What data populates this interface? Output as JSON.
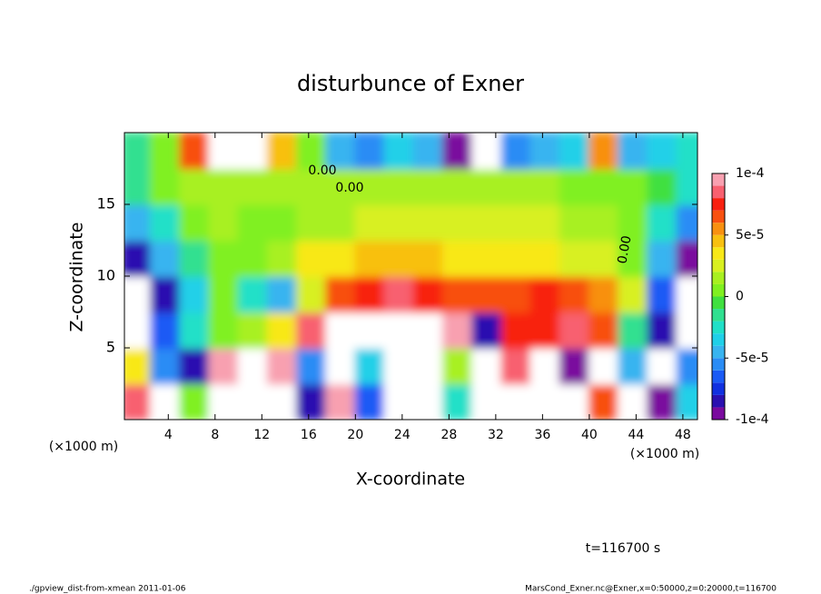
{
  "chart_data": {
    "type": "heatmap",
    "title": "disturbunce of Exner",
    "xlabel": "X-coordinate",
    "ylabel": "Z-coordinate",
    "x_unit_label": "(×1000 m)",
    "x_unit_label_right": "(×1000 m)",
    "time_label": "t=116700 s",
    "footer_left": "./gpview_dist-from-xmean  2011-01-06",
    "footer_right": "MarsCond_Exner.nc@Exner,x=0:50000,z=0:20000,t=116700",
    "annotations": [
      "0.00",
      "0.00",
      "0.00"
    ],
    "xlim": [
      0.25,
      49.25
    ],
    "ylim": [
      0,
      20
    ],
    "xticks": [
      4,
      8,
      12,
      16,
      20,
      24,
      28,
      32,
      36,
      40,
      44,
      48
    ],
    "yticks": [
      5,
      10,
      15
    ],
    "clim": [
      -0.0001,
      0.0001
    ],
    "cticks": [
      {
        "value": 0.0001,
        "label": "1e-4"
      },
      {
        "value": 5e-05,
        "label": "5e-5"
      },
      {
        "value": 0,
        "label": "0"
      },
      {
        "value": -5e-05,
        "label": "-5e-5"
      },
      {
        "value": -0.0001,
        "label": "-1e-4"
      }
    ],
    "colorscale": [
      "#7a0a9e",
      "#2a10b0",
      "#1030e0",
      "#1a5af5",
      "#2a8cf5",
      "#38b4f0",
      "#20d0e8",
      "#20e0c8",
      "#30e090",
      "#40e040",
      "#80f020",
      "#a8f020",
      "#d8f020",
      "#f8e818",
      "#f8c010",
      "#f89010",
      "#f85010",
      "#f82010",
      "#f86070",
      "#f8a0b0"
    ],
    "out_of_range_color": "#ffffff",
    "x": [
      1.25,
      3.75,
      6.25,
      8.75,
      11.25,
      13.75,
      16.25,
      18.75,
      21.25,
      23.75,
      26.25,
      28.75,
      31.25,
      33.75,
      36.25,
      38.75,
      41.25,
      43.75,
      46.25,
      48.75
    ],
    "z": [
      1.25,
      3.75,
      6.25,
      8.75,
      11.25,
      13.75,
      16.25,
      18.75
    ],
    "values": [
      [
        8e-05,
        0.00012,
        0,
        0.00012,
        0.00012,
        0.00012,
        -8e-05,
        9e-05,
        -7e-05,
        0.00012,
        0.00012,
        -3e-05,
        0.00012,
        -0.00012,
        -0.00012,
        -0.00012,
        6e-05,
        0.00012,
        -9e-05,
        -4e-05
      ],
      [
        3e-05,
        -6e-05,
        -8e-05,
        9e-05,
        0.00012,
        0.0001,
        -6e-05,
        0.00012,
        -4e-05,
        0.00012,
        0.00012,
        1e-05,
        0.00012,
        8e-05,
        -0.00012,
        -9e-05,
        -0.00012,
        -5e-05,
        -0.00012,
        -6e-05
      ],
      [
        -0.00012,
        -7e-05,
        -3e-05,
        0,
        1e-05,
        3e-05,
        8e-05,
        0.00012,
        0.00012,
        0.00012,
        0.00012,
        9e-05,
        -8e-05,
        7e-05,
        7e-05,
        8e-05,
        6e-05,
        -2e-05,
        -8e-05,
        -0.00012
      ],
      [
        -0.00012,
        -8e-05,
        -4e-05,
        0,
        -3e-05,
        -5e-05,
        2e-05,
        6e-05,
        7e-05,
        8e-05,
        7e-05,
        6e-05,
        6e-05,
        6e-05,
        7e-05,
        6e-05,
        5e-05,
        2e-05,
        -7e-05,
        -0.00012
      ],
      [
        -8e-05,
        -5e-05,
        -2e-05,
        0,
        0,
        1e-05,
        3e-05,
        3e-05,
        4e-05,
        4e-05,
        4e-05,
        3e-05,
        3e-05,
        3e-05,
        3e-05,
        2e-05,
        2e-05,
        0,
        -5e-05,
        -9e-05
      ],
      [
        -5e-05,
        -3e-05,
        0,
        1e-05,
        0,
        0,
        1e-05,
        1e-05,
        2e-05,
        2e-05,
        2e-05,
        2e-05,
        2e-05,
        2e-05,
        2e-05,
        1e-05,
        1e-05,
        0,
        -3e-05,
        -6e-05
      ],
      [
        -2e-05,
        0,
        1e-05,
        1e-05,
        1e-05,
        1e-05,
        1e-05,
        1e-05,
        1e-05,
        1e-05,
        1e-05,
        1e-05,
        1e-05,
        1e-05,
        1e-05,
        0,
        0,
        0,
        -1e-05,
        -3e-05
      ],
      [
        -2e-05,
        0,
        6e-05,
        0.00012,
        0.00012,
        4e-05,
        0,
        -5e-05,
        -6e-05,
        -4e-05,
        -5e-05,
        -0.0001,
        -0.00012,
        -6e-05,
        -5e-05,
        -4e-05,
        5e-05,
        -5e-05,
        -4e-05,
        -3e-05
      ]
    ]
  }
}
